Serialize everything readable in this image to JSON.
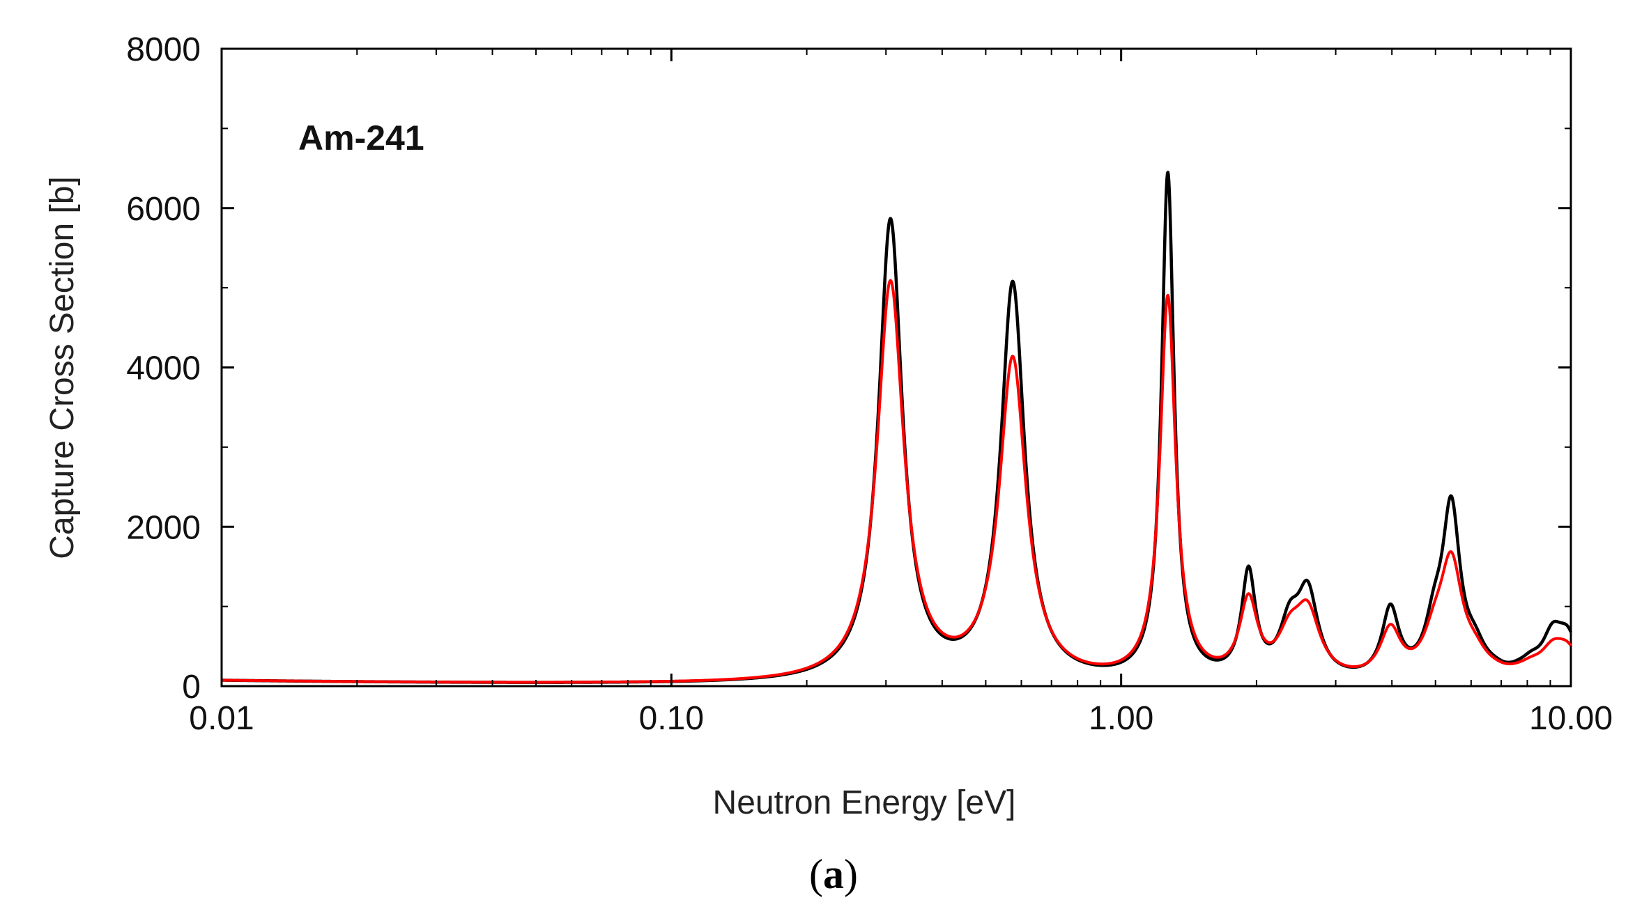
{
  "chart_data": {
    "type": "line",
    "title": "",
    "annotation": "Am-241",
    "xlabel": "Neutron Energy [eV]",
    "ylabel": "Capture Cross Section [b]",
    "xscale": "log",
    "xlim": [
      0.01,
      10.0
    ],
    "ylim": [
      0,
      8000
    ],
    "xticks": [
      0.01,
      0.1,
      1.0,
      10.0
    ],
    "xtick_labels": [
      "0.01",
      "0.10",
      "1.00",
      "10.00"
    ],
    "yticks": [
      0,
      2000,
      4000,
      6000,
      8000
    ],
    "ytick_labels": [
      "0",
      "2000",
      "4000",
      "6000",
      "8000"
    ],
    "grid": false,
    "background": {
      "value": 6.9,
      "exponent": -0.5
    },
    "series": [
      {
        "name": "black",
        "color": "#000000",
        "peaks": [
          {
            "energy": 0.307,
            "height": 5780,
            "hwhm": 0.032
          },
          {
            "energy": 0.574,
            "height": 4970,
            "hwhm": 0.032
          },
          {
            "energy": 1.27,
            "height": 6350,
            "hwhm": 0.017
          },
          {
            "energy": 1.92,
            "height": 1310,
            "hwhm": 0.019
          },
          {
            "energy": 2.37,
            "height": 600,
            "hwhm": 0.027
          },
          {
            "energy": 2.6,
            "height": 1030,
            "hwhm": 0.028
          },
          {
            "energy": 3.97,
            "height": 860,
            "hwhm": 0.023
          },
          {
            "energy": 4.97,
            "height": 540,
            "hwhm": 0.025
          },
          {
            "energy": 5.42,
            "height": 2080,
            "hwhm": 0.024
          },
          {
            "energy": 6.12,
            "height": 290,
            "hwhm": 0.028
          },
          {
            "energy": 6.75,
            "height": 60,
            "hwhm": 0.03
          },
          {
            "energy": 7.66,
            "height": 50,
            "hwhm": 0.03
          },
          {
            "energy": 8.17,
            "height": 150,
            "hwhm": 0.028
          },
          {
            "energy": 9.11,
            "height": 500,
            "hwhm": 0.028
          },
          {
            "energy": 9.85,
            "height": 480,
            "hwhm": 0.028
          }
        ]
      },
      {
        "name": "red",
        "color": "#ff0000",
        "peaks": [
          {
            "energy": 0.307,
            "height": 5000,
            "hwhm": 0.036
          },
          {
            "energy": 0.574,
            "height": 4020,
            "hwhm": 0.036
          },
          {
            "energy": 1.27,
            "height": 4800,
            "hwhm": 0.021
          },
          {
            "energy": 1.92,
            "height": 950,
            "hwhm": 0.024
          },
          {
            "energy": 2.37,
            "height": 460,
            "hwhm": 0.032
          },
          {
            "energy": 2.6,
            "height": 780,
            "hwhm": 0.033
          },
          {
            "energy": 3.97,
            "height": 600,
            "hwhm": 0.028
          },
          {
            "energy": 4.97,
            "height": 380,
            "hwhm": 0.03
          },
          {
            "energy": 5.42,
            "height": 1400,
            "hwhm": 0.03
          },
          {
            "energy": 6.12,
            "height": 210,
            "hwhm": 0.033
          },
          {
            "energy": 6.75,
            "height": 40,
            "hwhm": 0.035
          },
          {
            "energy": 7.66,
            "height": 35,
            "hwhm": 0.035
          },
          {
            "energy": 8.17,
            "height": 110,
            "hwhm": 0.033
          },
          {
            "energy": 9.11,
            "height": 320,
            "hwhm": 0.033
          },
          {
            "energy": 9.85,
            "height": 330,
            "hwhm": 0.033
          }
        ]
      }
    ]
  },
  "caption": {
    "open": "(",
    "letter": "a",
    "close": ")"
  }
}
